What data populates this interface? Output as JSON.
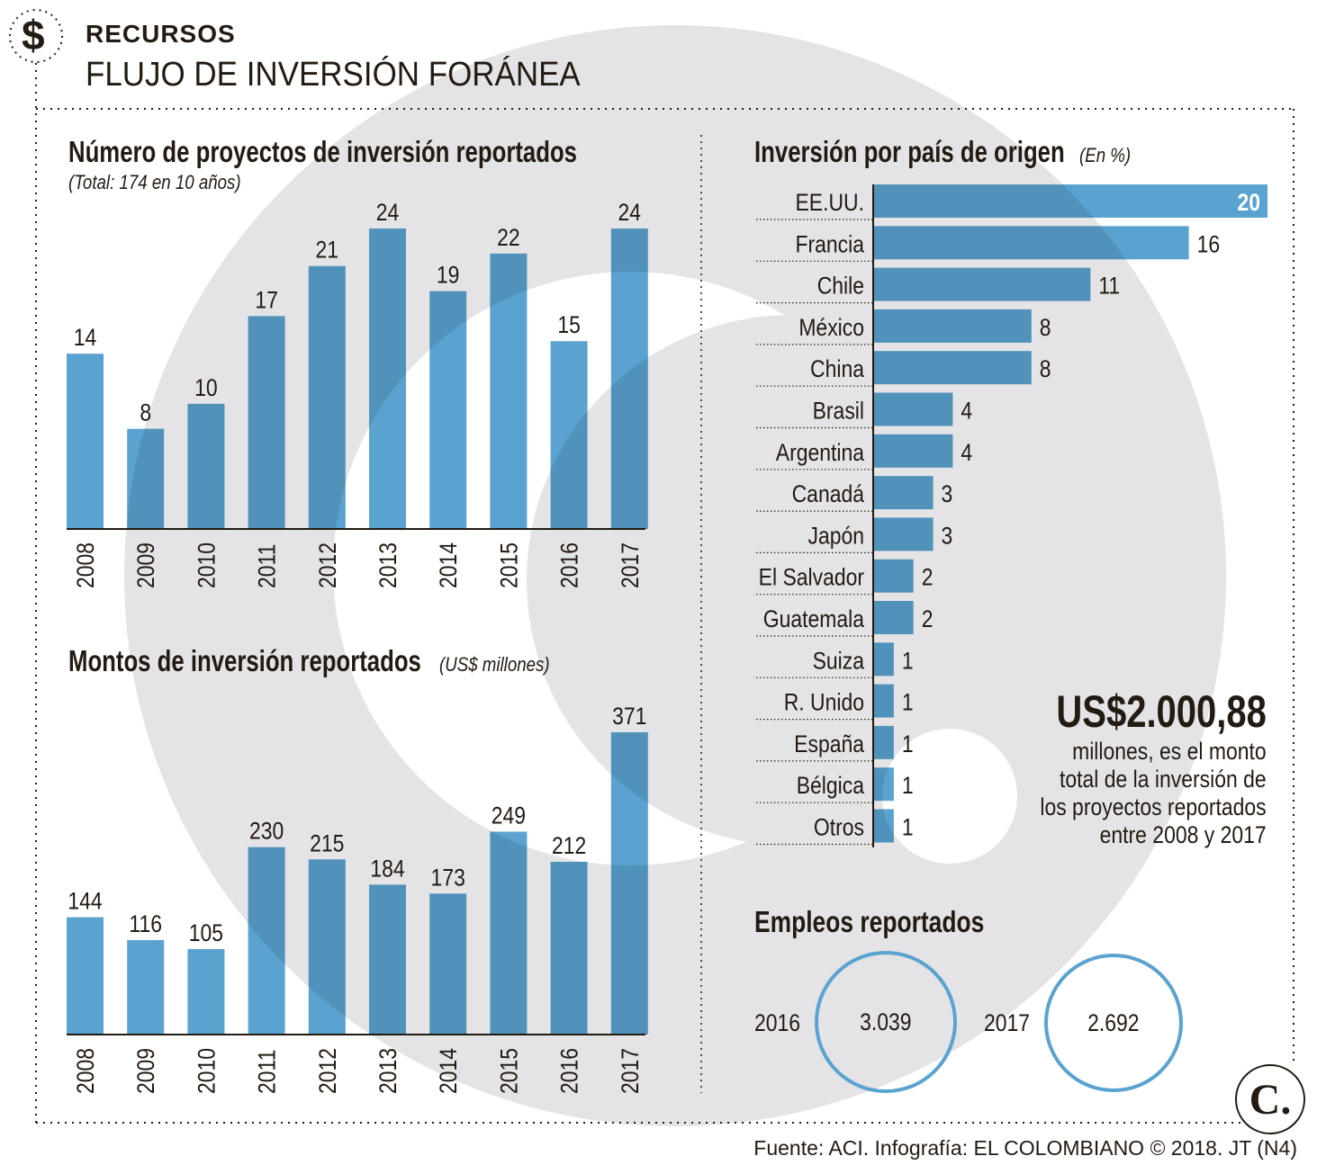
{
  "header": {
    "kicker": "RECURSOS",
    "title": "FLUJO DE INVERSIÓN FORÁNEA",
    "icon": "dollar-icon"
  },
  "colors": {
    "bar": "#5aa3d0",
    "background_shape": "#e4e4e6",
    "text": "#231a12",
    "circle": "#5aa3d0"
  },
  "chart_data": [
    {
      "type": "bar",
      "title": "Número de proyectos de inversión reportados",
      "subtitle": "(Total: 174 en 10 años)",
      "categories": [
        "2008",
        "2009",
        "2010",
        "2011",
        "2012",
        "2013",
        "2014",
        "2015",
        "2016",
        "2017"
      ],
      "values": [
        14,
        8,
        10,
        17,
        21,
        24,
        19,
        22,
        15,
        24
      ],
      "ylim": [
        0,
        24
      ]
    },
    {
      "type": "bar",
      "title": "Montos de inversión reportados",
      "subtitle": "(US$ millones)",
      "categories": [
        "2008",
        "2009",
        "2010",
        "2011",
        "2012",
        "2013",
        "2014",
        "2015",
        "2016",
        "2017"
      ],
      "values": [
        144,
        116,
        105,
        230,
        215,
        184,
        173,
        249,
        212,
        371
      ],
      "ylim": [
        0,
        371
      ]
    },
    {
      "type": "bar",
      "orientation": "horizontal",
      "title": "Inversión por país de origen",
      "subtitle": "(En %)",
      "categories": [
        "EE.UU.",
        "Francia",
        "Chile",
        "México",
        "China",
        "Brasil",
        "Argentina",
        "Canadá",
        "Japón",
        "El Salvador",
        "Guatemala",
        "Suiza",
        "R. Unido",
        "España",
        "Bélgica",
        "Otros"
      ],
      "values": [
        20,
        16,
        11,
        8,
        8,
        4,
        4,
        3,
        3,
        2,
        2,
        1,
        1,
        1,
        1,
        1
      ],
      "xlim": [
        0,
        20
      ]
    }
  ],
  "total": {
    "amount": "US$2.000,88",
    "lines": [
      "millones, es el monto",
      "total de la inversión de",
      "los proyectos reportados",
      "entre 2008 y 2017"
    ]
  },
  "jobs": {
    "title": "Empleos reportados",
    "items": [
      {
        "year": "2016",
        "value": "3.039"
      },
      {
        "year": "2017",
        "value": "2.692"
      }
    ]
  },
  "footer": {
    "source": "Fuente: ACI. Infografía: EL COLOMBIANO © 2018. JT (N4)",
    "logo": "C."
  }
}
